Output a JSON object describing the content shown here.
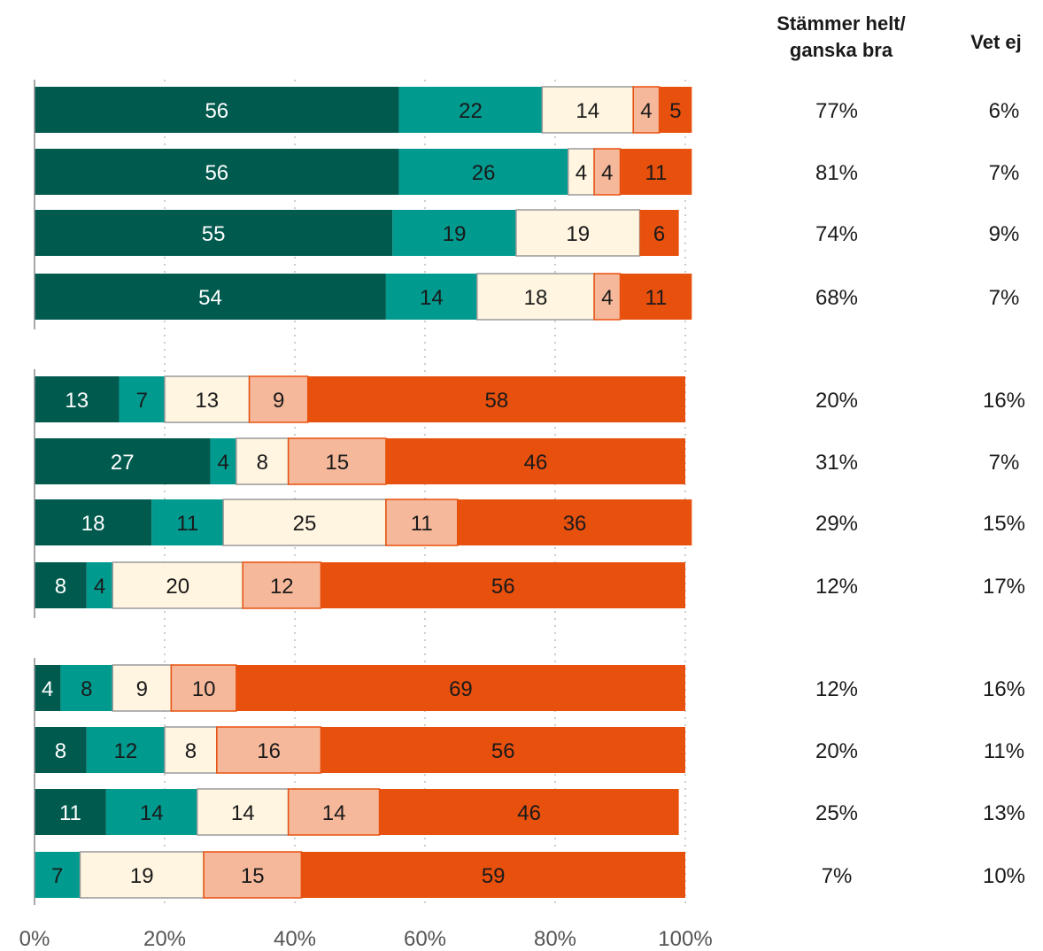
{
  "colors": {
    "helt": "#005a4e",
    "ganska": "#009a8f",
    "neutral": "#fff5e0",
    "ganska_daligt": "#f6b89b",
    "inte_alls": "#e8500e"
  },
  "headers": {
    "line1": "Stämmer helt/",
    "line2": "ganska bra",
    "vet_ej": "Vet ej"
  },
  "chart_data": {
    "type": "bar",
    "orientation": "horizontal",
    "stacked": true,
    "xlim": [
      0,
      100
    ],
    "x_ticks": [
      "0%",
      "20%",
      "40%",
      "60%",
      "80%",
      "100%"
    ],
    "grid": true,
    "rows": [
      {
        "values": [
          56,
          22,
          14,
          4,
          5
        ],
        "stammer": "77%",
        "vet_ej": "6%"
      },
      {
        "values": [
          56,
          26,
          4,
          4,
          11
        ],
        "stammer": "81%",
        "vet_ej": "7%"
      },
      {
        "values": [
          55,
          19,
          19,
          0,
          6
        ],
        "stammer": "74%",
        "vet_ej": "9%"
      },
      {
        "values": [
          54,
          14,
          18,
          4,
          11
        ],
        "stammer": "68%",
        "vet_ej": "7%"
      },
      {
        "values": [
          13,
          7,
          13,
          9,
          58
        ],
        "stammer": "20%",
        "vet_ej": "16%"
      },
      {
        "values": [
          27,
          4,
          8,
          15,
          46
        ],
        "stammer": "31%",
        "vet_ej": "7%"
      },
      {
        "values": [
          18,
          11,
          25,
          11,
          36
        ],
        "stammer": "29%",
        "vet_ej": "15%"
      },
      {
        "values": [
          8,
          4,
          20,
          12,
          56
        ],
        "stammer": "12%",
        "vet_ej": "17%"
      },
      {
        "values": [
          4,
          8,
          9,
          10,
          69
        ],
        "stammer": "12%",
        "vet_ej": "16%"
      },
      {
        "values": [
          8,
          12,
          8,
          16,
          56
        ],
        "stammer": "20%",
        "vet_ej": "11%"
      },
      {
        "values": [
          11,
          14,
          14,
          14,
          46
        ],
        "stammer": "25%",
        "vet_ej": "13%"
      },
      {
        "values": [
          0,
          7,
          19,
          15,
          59
        ],
        "stammer": "7%",
        "vet_ej": "10%"
      }
    ]
  }
}
